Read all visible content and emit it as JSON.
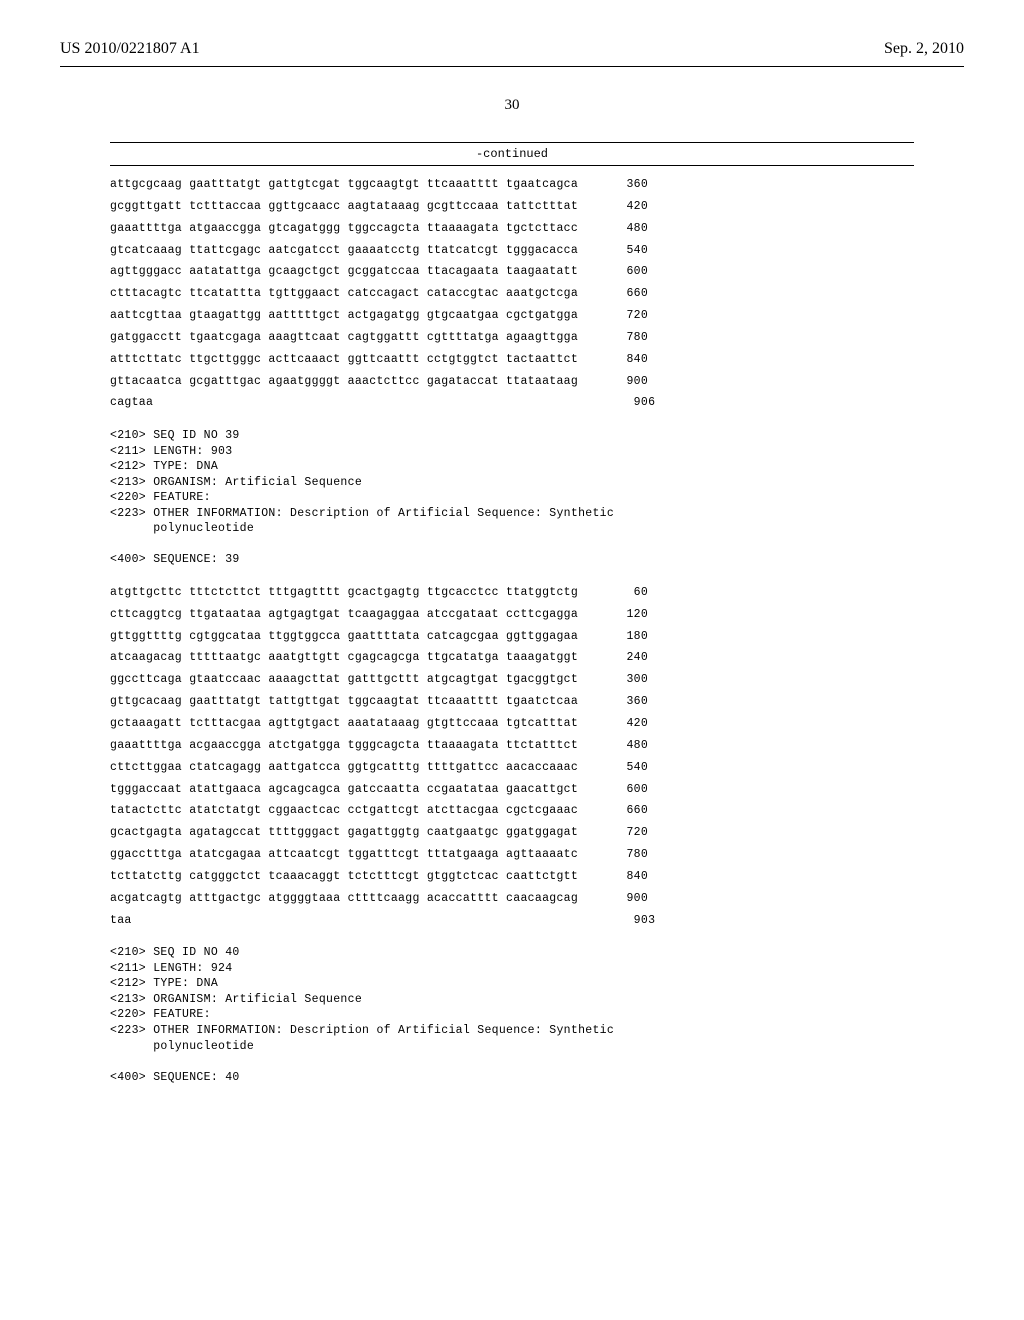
{
  "header": {
    "left": "US 2010/0221807 A1",
    "right": "Sep. 2, 2010"
  },
  "page_number": "30",
  "continued_label": "-continued",
  "seq1": {
    "lines": [
      {
        "text": "attgcgcaag gaatttatgt gattgtcgat tggcaagtgt ttcaaatttt tgaatcagca",
        "num": "360"
      },
      {
        "text": "gcggttgatt tctttaccaa ggttgcaacc aagtataaag gcgttccaaa tattctttat",
        "num": "420"
      },
      {
        "text": "gaaattttga atgaaccgga gtcagatggg tggccagcta ttaaaagata tgctcttacc",
        "num": "480"
      },
      {
        "text": "gtcatcaaag ttattcgagc aatcgatcct gaaaatcctg ttatcatcgt tgggacacca",
        "num": "540"
      },
      {
        "text": "agttgggacc aatatattga gcaagctgct gcggatccaa ttacagaata taagaatatt",
        "num": "600"
      },
      {
        "text": "ctttacagtc ttcatattta tgttggaact catccagact cataccgtac aaatgctcga",
        "num": "660"
      },
      {
        "text": "aattcgttaa gtaagattgg aatttttgct actgagatgg gtgcaatgaa cgctgatgga",
        "num": "720"
      },
      {
        "text": "gatggacctt tgaatcgaga aaagttcaat cagtggattt cgttttatga agaagttgga",
        "num": "780"
      },
      {
        "text": "atttcttatc ttgcttgggc acttcaaact ggttcaattt cctgtggtct tactaattct",
        "num": "840"
      },
      {
        "text": "gttacaatca gcgatttgac agaatggggt aaactcttcc gagataccat ttataataag",
        "num": "900"
      },
      {
        "text": "cagtaa                                                            ",
        "num": "906"
      }
    ]
  },
  "meta1": {
    "lines": [
      "<210> SEQ ID NO 39",
      "<211> LENGTH: 903",
      "<212> TYPE: DNA",
      "<213> ORGANISM: Artificial Sequence",
      "<220> FEATURE:",
      "<223> OTHER INFORMATION: Description of Artificial Sequence: Synthetic",
      "      polynucleotide",
      "",
      "<400> SEQUENCE: 39"
    ]
  },
  "seq2": {
    "lines": [
      {
        "text": "atgttgcttc tttctcttct tttgagtttt gcactgagtg ttgcacctcc ttatggtctg",
        "num": "60"
      },
      {
        "text": "cttcaggtcg ttgataataa agtgagtgat tcaagaggaa atccgataat ccttcgagga",
        "num": "120"
      },
      {
        "text": "gttggttttg cgtggcataa ttggtggcca gaattttata catcagcgaa ggttggagaa",
        "num": "180"
      },
      {
        "text": "atcaagacag tttttaatgc aaatgttgtt cgagcagcga ttgcatatga taaagatggt",
        "num": "240"
      },
      {
        "text": "ggccttcaga gtaatccaac aaaagcttat gatttgcttt atgcagtgat tgacggtgct",
        "num": "300"
      },
      {
        "text": "gttgcacaag gaatttatgt tattgttgat tggcaagtat ttcaaatttt tgaatctcaa",
        "num": "360"
      },
      {
        "text": "gctaaagatt tctttacgaa agttgtgact aaatataaag gtgttccaaa tgtcatttat",
        "num": "420"
      },
      {
        "text": "gaaattttga acgaaccgga atctgatgga tgggcagcta ttaaaagata ttctatttct",
        "num": "480"
      },
      {
        "text": "cttcttggaa ctatcagagg aattgatcca ggtgcatttg ttttgattcc aacaccaaac",
        "num": "540"
      },
      {
        "text": "tgggaccaat atattgaaca agcagcagca gatccaatta ccgaatataa gaacattgct",
        "num": "600"
      },
      {
        "text": "tatactcttc atatctatgt cggaactcac cctgattcgt atcttacgaa cgctcgaaac",
        "num": "660"
      },
      {
        "text": "gcactgagta agatagccat ttttgggact gagattggtg caatgaatgc ggatggagat",
        "num": "720"
      },
      {
        "text": "ggacctttga atatcgagaa attcaatcgt tggatttcgt tttatgaaga agttaaaatc",
        "num": "780"
      },
      {
        "text": "tcttatcttg catgggctct tcaaacaggt tctctttcgt gtggtctcac caattctgtt",
        "num": "840"
      },
      {
        "text": "acgatcagtg atttgactgc atggggtaaa cttttcaagg acaccatttt caacaagcag",
        "num": "900"
      },
      {
        "text": "taa                                                               ",
        "num": "903"
      }
    ]
  },
  "meta2": {
    "lines": [
      "<210> SEQ ID NO 40",
      "<211> LENGTH: 924",
      "<212> TYPE: DNA",
      "<213> ORGANISM: Artificial Sequence",
      "<220> FEATURE:",
      "<223> OTHER INFORMATION: Description of Artificial Sequence: Synthetic",
      "      polynucleotide",
      "",
      "<400> SEQUENCE: 40"
    ]
  }
}
